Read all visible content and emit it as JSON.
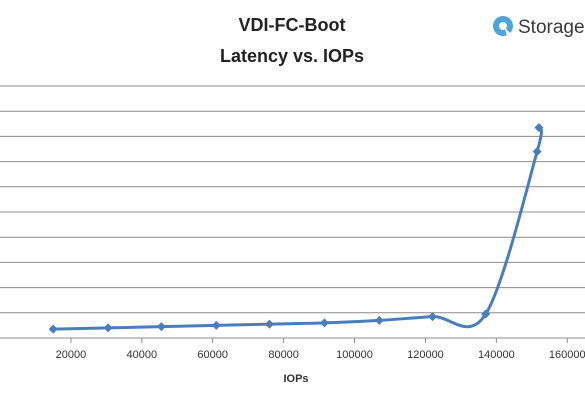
{
  "chart_data": {
    "type": "line",
    "title_line1": "VDI-FC-Boot",
    "title_line2": "Latency vs. IOPs",
    "xlabel": "IOPs",
    "ylabel": "",
    "xlim": [
      0,
      165000
    ],
    "ylim": [
      0,
      10
    ],
    "x_ticks": [
      20000,
      40000,
      60000,
      80000,
      100000,
      120000,
      140000,
      160000
    ],
    "grid": true,
    "legend": "none",
    "series": [
      {
        "color": "#4a7ebb",
        "marker": "diamond",
        "smooth": true,
        "x": [
          15000,
          30500,
          45500,
          61000,
          76000,
          91500,
          107000,
          122000,
          137000,
          151500,
          152000
        ],
        "y": [
          0.35,
          0.4,
          0.45,
          0.5,
          0.55,
          0.6,
          0.7,
          0.85,
          0.95,
          7.4,
          8.35
        ]
      }
    ]
  },
  "logo": {
    "text": "Storage",
    "color": "#4fa3d8"
  }
}
